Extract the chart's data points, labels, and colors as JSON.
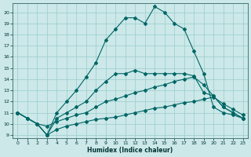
{
  "xlabel": "Humidex (Indice chaleur)",
  "bg_color": "#cce8e8",
  "grid_color": "#99cccc",
  "line_color": "#006666",
  "xlim": [
    -0.5,
    23.5
  ],
  "ylim": [
    8.7,
    20.8
  ],
  "yticks": [
    9,
    10,
    11,
    12,
    13,
    14,
    15,
    16,
    17,
    18,
    19,
    20
  ],
  "xticks": [
    0,
    1,
    2,
    3,
    4,
    5,
    6,
    7,
    8,
    9,
    10,
    11,
    12,
    13,
    14,
    15,
    16,
    17,
    18,
    19,
    20,
    21,
    22,
    23
  ],
  "series1_x": [
    0,
    1,
    2,
    3,
    4,
    5,
    6,
    7,
    8,
    9,
    10,
    11,
    12,
    13,
    14,
    15,
    16,
    17,
    18,
    19,
    20,
    21,
    22,
    23
  ],
  "series1_y": [
    11.0,
    10.5,
    10.0,
    9.0,
    9.5,
    9.8,
    10.0,
    10.2,
    10.4,
    10.5,
    10.6,
    10.8,
    11.0,
    11.2,
    11.4,
    11.5,
    11.7,
    11.9,
    12.0,
    12.2,
    12.4,
    11.8,
    11.3,
    10.8
  ],
  "series2_x": [
    0,
    1,
    2,
    3,
    4,
    5,
    6,
    7,
    8,
    9,
    10,
    11,
    12,
    13,
    14,
    15,
    16,
    17,
    18,
    19,
    20,
    21,
    22,
    23
  ],
  "series2_y": [
    11.0,
    10.5,
    10.0,
    9.8,
    10.2,
    10.5,
    10.8,
    11.0,
    11.5,
    12.0,
    12.2,
    12.5,
    12.8,
    13.0,
    13.3,
    13.5,
    13.8,
    14.0,
    14.2,
    13.5,
    12.5,
    11.5,
    11.0,
    10.5
  ],
  "series3_x": [
    0,
    2,
    3,
    4,
    5,
    6,
    7,
    8,
    9,
    10,
    11,
    12,
    13,
    14,
    15,
    16,
    17,
    18,
    19,
    20,
    21,
    22,
    23
  ],
  "series3_y": [
    11.0,
    10.0,
    9.0,
    10.5,
    11.0,
    11.5,
    12.0,
    13.0,
    13.8,
    14.5,
    14.5,
    14.8,
    14.5,
    14.5,
    14.5,
    14.5,
    14.5,
    14.3,
    12.8,
    12.5,
    11.5,
    11.0,
    10.5
  ],
  "series4_x": [
    0,
    1,
    2,
    3,
    4,
    5,
    6,
    7,
    8,
    9,
    10,
    11,
    12,
    13,
    14,
    15,
    16,
    17,
    18,
    19,
    20,
    21,
    22,
    23
  ],
  "series4_y": [
    11.0,
    10.5,
    10.0,
    9.0,
    11.0,
    12.0,
    13.0,
    14.2,
    15.5,
    17.5,
    18.5,
    19.5,
    19.5,
    19.0,
    20.5,
    20.0,
    19.0,
    18.5,
    16.5,
    14.5,
    11.5,
    11.0,
    10.8,
    10.5
  ]
}
